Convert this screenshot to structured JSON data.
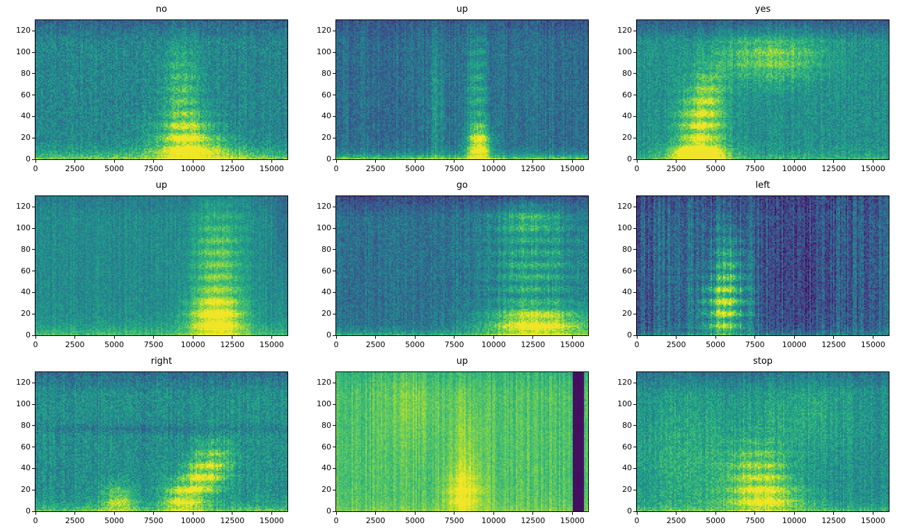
{
  "figure": {
    "rows": 3,
    "cols": 3,
    "background": "#ffffff",
    "colormap": "viridis",
    "description": "3x3 grid of audio spectrograms (log-mel style heatmaps) of spoken command words"
  },
  "chart_data": [
    {
      "type": "heatmap",
      "title": "no",
      "xlim": [
        0,
        16000
      ],
      "ylim": [
        0,
        130
      ],
      "xticks": [
        0,
        2500,
        5000,
        7500,
        10000,
        12500,
        15000
      ],
      "yticks": [
        0,
        20,
        40,
        60,
        80,
        100,
        120
      ],
      "seed": 11,
      "base": 0.46,
      "noise": 0.11,
      "col_noise": 0.04,
      "bottom_band": {
        "height": 6,
        "amp": 0.38
      },
      "top_dark": 0.12,
      "features": [
        {
          "x": 9700,
          "y": 18,
          "sx": 1400,
          "sy": 16,
          "amp": 0.5,
          "stripes": 0.5
        },
        {
          "x": 9300,
          "y": 62,
          "sx": 900,
          "sy": 32,
          "amp": 0.28,
          "stripes": 0.4
        },
        {
          "x": 10500,
          "y": 5,
          "sx": 2500,
          "sy": 8,
          "amp": 0.2,
          "stripes": 0
        }
      ],
      "rects": []
    },
    {
      "type": "heatmap",
      "title": "up",
      "xlim": [
        0,
        16000
      ],
      "ylim": [
        0,
        130
      ],
      "xticks": [
        0,
        2500,
        5000,
        7500,
        10000,
        12500,
        15000
      ],
      "yticks": [
        0,
        20,
        40,
        60,
        80,
        100,
        120
      ],
      "seed": 22,
      "base": 0.37,
      "noise": 0.1,
      "col_noise": 0.06,
      "bottom_band": {
        "height": 4,
        "amp": 0.5
      },
      "top_dark": 0.08,
      "features": [
        {
          "x": 9100,
          "y": 12,
          "sx": 550,
          "sy": 13,
          "amp": 0.62,
          "stripes": 0.3
        },
        {
          "x": 9000,
          "y": 60,
          "sx": 450,
          "sy": 45,
          "amp": 0.3,
          "stripes": 0.45
        },
        {
          "x": 6400,
          "y": 50,
          "sx": 350,
          "sy": 55,
          "amp": 0.16,
          "stripes": 0
        }
      ],
      "rects": []
    },
    {
      "type": "heatmap",
      "title": "yes",
      "xlim": [
        0,
        16000
      ],
      "ylim": [
        0,
        130
      ],
      "xticks": [
        0,
        2500,
        5000,
        7500,
        10000,
        12500,
        15000
      ],
      "yticks": [
        0,
        20,
        40,
        60,
        80,
        100,
        120
      ],
      "seed": 33,
      "base": 0.5,
      "noise": 0.1,
      "col_noise": 0.04,
      "bottom_band": {
        "height": 5,
        "amp": 0.2
      },
      "top_dark": 0.2,
      "features": [
        {
          "x": 4000,
          "y": 25,
          "sx": 1000,
          "sy": 26,
          "amp": 0.5,
          "stripes": 0.5
        },
        {
          "x": 3900,
          "y": 4,
          "sx": 1300,
          "sy": 7,
          "amp": 0.5,
          "stripes": 0
        },
        {
          "x": 8600,
          "y": 95,
          "sx": 2300,
          "sy": 16,
          "amp": 0.33,
          "stripes": 0.3
        },
        {
          "x": 4600,
          "y": 60,
          "sx": 700,
          "sy": 20,
          "amp": 0.25,
          "stripes": 0.4
        }
      ],
      "rects": []
    },
    {
      "type": "heatmap",
      "title": "up",
      "xlim": [
        0,
        16000
      ],
      "ylim": [
        0,
        130
      ],
      "xticks": [
        0,
        2500,
        5000,
        7500,
        10000,
        12500,
        15000
      ],
      "yticks": [
        0,
        20,
        40,
        60,
        80,
        100,
        120
      ],
      "seed": 44,
      "base": 0.48,
      "noise": 0.08,
      "col_noise": 0.04,
      "bottom_band": {
        "height": 8,
        "amp": 0.25
      },
      "top_dark": 0.06,
      "features": [
        {
          "x": 11500,
          "y": 15,
          "sx": 1250,
          "sy": 16,
          "amp": 0.55,
          "stripes": 0.35
        },
        {
          "x": 11600,
          "y": 65,
          "sx": 1100,
          "sy": 40,
          "amp": 0.35,
          "stripes": 0.45
        },
        {
          "x": 15600,
          "y": 105,
          "sx": 260,
          "sy": 28,
          "amp": -0.12,
          "stripes": 0
        }
      ],
      "rects": []
    },
    {
      "type": "heatmap",
      "title": "go",
      "xlim": [
        0,
        16000
      ],
      "ylim": [
        0,
        130
      ],
      "xticks": [
        0,
        2500,
        5000,
        7500,
        10000,
        12500,
        15000
      ],
      "yticks": [
        0,
        20,
        40,
        60,
        80,
        100,
        120
      ],
      "seed": 55,
      "base": 0.38,
      "noise": 0.1,
      "col_noise": 0.05,
      "bottom_band": {
        "height": 4,
        "amp": 0.3
      },
      "top_dark": 0.14,
      "features": [
        {
          "x": 12800,
          "y": 10,
          "sx": 2400,
          "sy": 11,
          "amp": 0.58,
          "stripes": 0.25
        },
        {
          "x": 12500,
          "y": 60,
          "sx": 2000,
          "sy": 40,
          "amp": 0.3,
          "stripes": 0.55
        },
        {
          "x": 12200,
          "y": 108,
          "sx": 1500,
          "sy": 10,
          "amp": 0.2,
          "stripes": 0.3
        }
      ],
      "rects": []
    },
    {
      "type": "heatmap",
      "title": "left",
      "xlim": [
        0,
        16000
      ],
      "ylim": [
        0,
        130
      ],
      "xticks": [
        0,
        2500,
        5000,
        7500,
        10000,
        12500,
        15000
      ],
      "yticks": [
        0,
        20,
        40,
        60,
        80,
        100,
        120
      ],
      "seed": 66,
      "base": 0.31,
      "noise": 0.12,
      "col_noise": 0.11,
      "bottom_band": {
        "height": 4,
        "amp": 0.2
      },
      "top_dark": 0.05,
      "features": [
        {
          "x": 5600,
          "y": 22,
          "sx": 1000,
          "sy": 24,
          "amp": 0.62,
          "stripes": 0.55
        },
        {
          "x": 5900,
          "y": 68,
          "sx": 750,
          "sy": 26,
          "amp": 0.3,
          "stripes": 0.5
        },
        {
          "x": 10600,
          "y": 60,
          "sx": 1400,
          "sy": 65,
          "amp": -0.1,
          "stripes": 0
        },
        {
          "x": 2500,
          "y": 60,
          "sx": 600,
          "sy": 60,
          "amp": 0.08,
          "stripes": 0
        }
      ],
      "rects": []
    },
    {
      "type": "heatmap",
      "title": "right",
      "xlim": [
        0,
        16000
      ],
      "ylim": [
        0,
        130
      ],
      "xticks": [
        0,
        2500,
        5000,
        7500,
        10000,
        12500,
        15000
      ],
      "yticks": [
        0,
        20,
        40,
        60,
        80,
        100,
        120
      ],
      "seed": 77,
      "base": 0.5,
      "noise": 0.11,
      "col_noise": 0.05,
      "bottom_band": {
        "height": 5,
        "amp": 0.3
      },
      "top_dark": 0.13,
      "features": [
        {
          "x": 9200,
          "y": 10,
          "sx": 800,
          "sy": 13,
          "amp": 0.45,
          "stripes": 0.4
        },
        {
          "x": 10400,
          "y": 28,
          "sx": 800,
          "sy": 15,
          "amp": 0.42,
          "stripes": 0.5
        },
        {
          "x": 11500,
          "y": 45,
          "sx": 800,
          "sy": 16,
          "amp": 0.35,
          "stripes": 0.5
        },
        {
          "x": 5300,
          "y": 10,
          "sx": 750,
          "sy": 11,
          "amp": 0.35,
          "stripes": 0.3
        },
        {
          "x": 8000,
          "y": 77,
          "sx": 8000,
          "sy": 3,
          "amp": -0.09,
          "stripes": 0
        }
      ],
      "rects": []
    },
    {
      "type": "heatmap",
      "title": "up",
      "xlim": [
        0,
        16000
      ],
      "ylim": [
        0,
        130
      ],
      "xticks": [
        0,
        2500,
        5000,
        7500,
        10000,
        12500,
        15000
      ],
      "yticks": [
        0,
        20,
        40,
        60,
        80,
        100,
        120
      ],
      "seed": 88,
      "base": 0.72,
      "noise": 0.06,
      "col_noise": 0.06,
      "bottom_band": {
        "height": 6,
        "amp": 0.1
      },
      "top_dark": 0.06,
      "features": [
        {
          "x": 8100,
          "y": 16,
          "sx": 900,
          "sy": 15,
          "amp": 0.25,
          "stripes": 0.3
        },
        {
          "x": 8300,
          "y": 50,
          "sx": 700,
          "sy": 40,
          "amp": 0.12,
          "stripes": 0
        },
        {
          "x": 4800,
          "y": 100,
          "sx": 1200,
          "sy": 30,
          "amp": 0.08,
          "stripes": 0
        }
      ],
      "rects": [
        {
          "x0": 15050,
          "x1": 15720,
          "y0": 0,
          "y1": 130,
          "set": 0.04
        }
      ]
    },
    {
      "type": "heatmap",
      "title": "stop",
      "xlim": [
        0,
        16000
      ],
      "ylim": [
        0,
        130
      ],
      "xticks": [
        0,
        2500,
        5000,
        7500,
        10000,
        12500,
        15000
      ],
      "yticks": [
        0,
        20,
        40,
        60,
        80,
        100,
        120
      ],
      "seed": 99,
      "base": 0.5,
      "noise": 0.1,
      "col_noise": 0.05,
      "bottom_band": {
        "height": 5,
        "amp": 0.22
      },
      "top_dark": 0.12,
      "features": [
        {
          "x": 7800,
          "y": 32,
          "sx": 1500,
          "sy": 22,
          "amp": 0.42,
          "stripes": 0.5
        },
        {
          "x": 8300,
          "y": 10,
          "sx": 1800,
          "sy": 10,
          "amp": 0.3,
          "stripes": 0.3
        },
        {
          "x": 3000,
          "y": 45,
          "sx": 2200,
          "sy": 45,
          "amp": 0.13,
          "stripes": 0
        },
        {
          "x": 10500,
          "y": 90,
          "sx": 2500,
          "sy": 25,
          "amp": 0.1,
          "stripes": 0
        }
      ],
      "rects": []
    }
  ]
}
